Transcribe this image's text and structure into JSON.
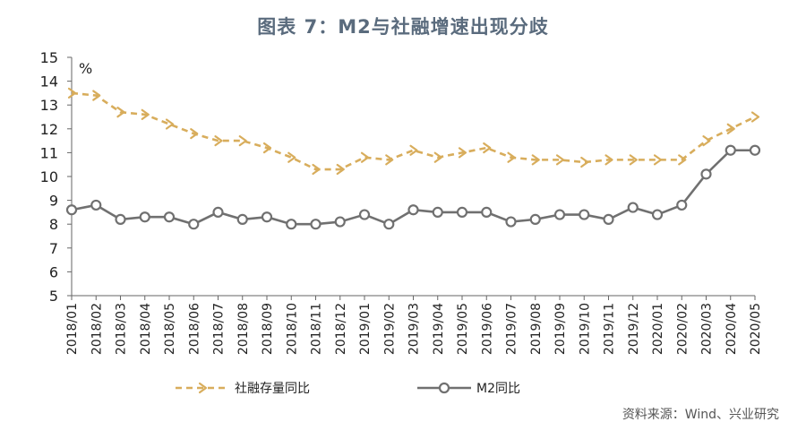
{
  "title": "图表 7：M2与社融增速出现分歧",
  "source": "资料来源：Wind、兴业研究",
  "colors": {
    "series1": "#d8ad5c",
    "series2": "#707070",
    "axis": "#666666",
    "title": "#5a6b7d"
  },
  "chart_data": {
    "type": "line",
    "title": "图表 7：M2与社融增速出现分歧",
    "xlabel": "",
    "ylabel": "%",
    "ylim": [
      5,
      15
    ],
    "yticks": [
      5,
      6,
      7,
      8,
      9,
      10,
      11,
      12,
      13,
      14,
      15
    ],
    "grid": false,
    "legend_position": "bottom",
    "categories": [
      "2018/01",
      "2018/02",
      "2018/03",
      "2018/04",
      "2018/05",
      "2018/06",
      "2018/07",
      "2018/08",
      "2018/09",
      "2018/10",
      "2018/11",
      "2018/12",
      "2019/01",
      "2019/02",
      "2019/03",
      "2019/04",
      "2019/05",
      "2019/06",
      "2019/07",
      "2019/08",
      "2019/09",
      "2019/10",
      "2019/11",
      "2019/12",
      "2020/01",
      "2020/02",
      "2020/03",
      "2020/04",
      "2020/05"
    ],
    "series": [
      {
        "name": "社融存量同比",
        "style": "dashed-arrow",
        "values": [
          13.5,
          13.4,
          12.7,
          12.6,
          12.2,
          11.8,
          11.5,
          11.5,
          11.2,
          10.8,
          10.3,
          10.3,
          10.8,
          10.7,
          11.1,
          10.8,
          11.0,
          11.2,
          10.8,
          10.7,
          10.7,
          10.6,
          10.7,
          10.7,
          10.7,
          10.7,
          11.5,
          12.0,
          12.5
        ]
      },
      {
        "name": "M2同比",
        "style": "solid-circle",
        "values": [
          8.6,
          8.8,
          8.2,
          8.3,
          8.3,
          8.0,
          8.5,
          8.2,
          8.3,
          8.0,
          8.0,
          8.1,
          8.4,
          8.0,
          8.6,
          8.5,
          8.5,
          8.5,
          8.1,
          8.2,
          8.4,
          8.4,
          8.2,
          8.7,
          8.4,
          8.8,
          10.1,
          11.1,
          11.1
        ]
      }
    ]
  }
}
